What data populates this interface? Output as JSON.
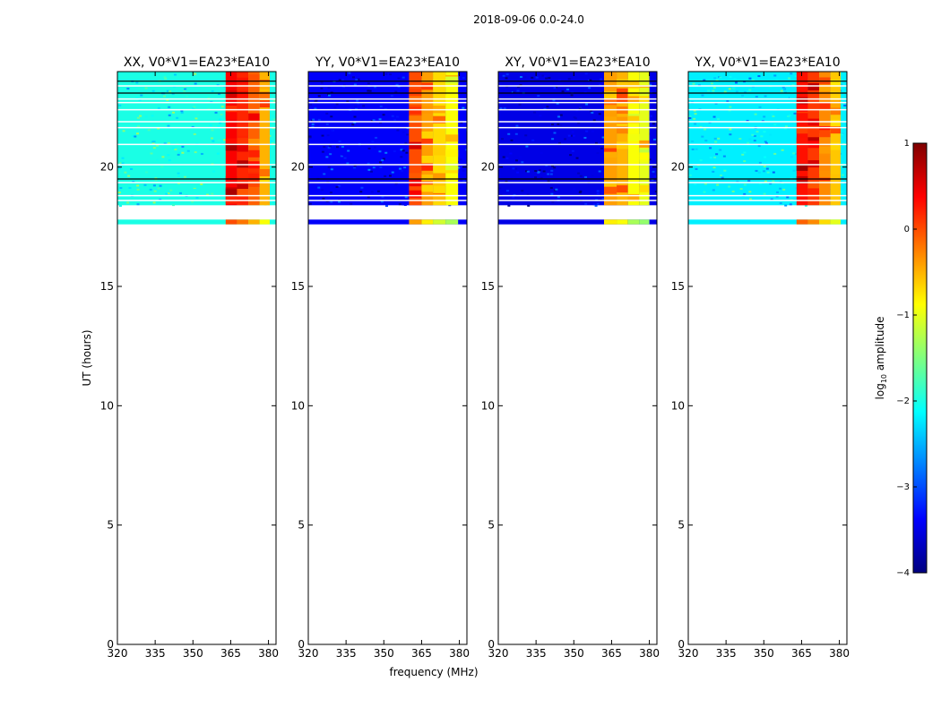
{
  "figure_title": "2018-09-06 0.0-24.0",
  "chart_data": {
    "type": "heatmap",
    "title": "2018-09-06 0.0-24.0",
    "xlabel": "frequency (MHz)",
    "ylabel": "UT (hours)",
    "xlim": [
      320,
      383
    ],
    "ylim": [
      0,
      24
    ],
    "x_ticks": [
      320,
      335,
      350,
      365,
      380
    ],
    "y_ticks": [
      0,
      5,
      10,
      15,
      20
    ],
    "data_time_range": [
      17.6,
      24.0
    ],
    "data_gap": [
      17.8,
      18.4
    ],
    "panels": [
      {
        "name": "XX",
        "title": "XX, V0*V1=EA23*EA10",
        "baseline_level": -2.0,
        "bands": [
          {
            "from": 363,
            "to": 367.5,
            "level": 0.4
          },
          {
            "from": 367.5,
            "to": 372,
            "level": 0.2
          },
          {
            "from": 372,
            "to": 376.5,
            "level": -0.1
          },
          {
            "from": 376.5,
            "to": 380.5,
            "level": -0.5
          }
        ]
      },
      {
        "name": "YY",
        "title": "YY, V0*V1=EA23*EA10",
        "baseline_level": -3.4,
        "bands": [
          {
            "from": 360,
            "to": 365,
            "level": 0.0
          },
          {
            "from": 365,
            "to": 369.5,
            "level": -0.4
          },
          {
            "from": 369.5,
            "to": 374.5,
            "level": -0.7
          },
          {
            "from": 374.5,
            "to": 379.5,
            "level": -0.9
          }
        ]
      },
      {
        "name": "XY",
        "title": "XY, V0*V1=EA23*EA10",
        "baseline_level": -3.5,
        "bands": [
          {
            "from": 362,
            "to": 367,
            "level": -0.4
          },
          {
            "from": 367,
            "to": 371.5,
            "level": -0.5
          },
          {
            "from": 371.5,
            "to": 376,
            "level": -0.9
          },
          {
            "from": 376,
            "to": 380,
            "level": -1.0
          }
        ]
      },
      {
        "name": "YX",
        "title": "YX, V0*V1=EA23*EA10",
        "baseline_level": -2.2,
        "bands": [
          {
            "from": 363,
            "to": 367.5,
            "level": 0.3
          },
          {
            "from": 367.5,
            "to": 372,
            "level": 0.1
          },
          {
            "from": 372,
            "to": 376.5,
            "level": -0.3
          },
          {
            "from": 376.5,
            "to": 380.5,
            "level": -0.6
          }
        ]
      }
    ],
    "colorbar": {
      "label": "log10 amplitude",
      "label_prefix": "log",
      "label_subscript": "10",
      "label_suffix": " amplitude",
      "range": [
        -4,
        1
      ],
      "ticks": [
        "1",
        "0",
        "−1",
        "−2",
        "−3",
        "−4"
      ],
      "colormap": "jet"
    }
  }
}
